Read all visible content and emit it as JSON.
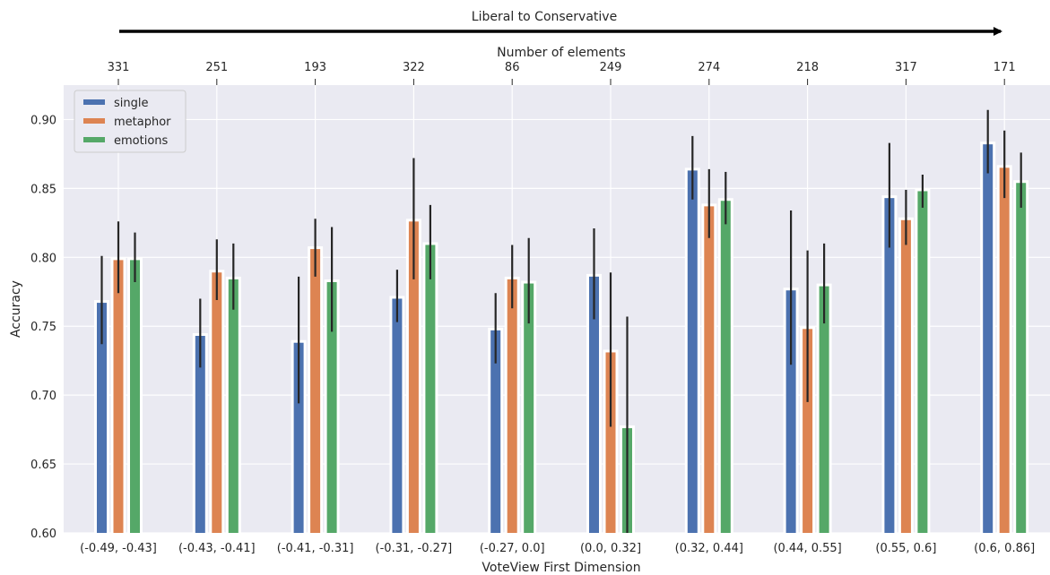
{
  "chart_data": {
    "type": "bar",
    "title": "Liberal to Conservative",
    "top_axis_label": "Number of elements",
    "top_tick_labels": [
      "331",
      "251",
      "193",
      "322",
      "86",
      "249",
      "274",
      "218",
      "317",
      "171"
    ],
    "xlabel": "VoteView First Dimension",
    "ylabel": "Accuracy",
    "categories": [
      "(-0.49, -0.43]",
      "(-0.43, -0.41]",
      "(-0.41, -0.31]",
      "(-0.31, -0.27]",
      "(-0.27, 0.0]",
      "(0.0, 0.32]",
      "(0.32, 0.44]",
      "(0.44, 0.55]",
      "(0.55, 0.6]",
      "(0.6, 0.86]"
    ],
    "ylim": [
      0.6,
      0.925
    ],
    "yticks": [
      "0.60",
      "0.65",
      "0.70",
      "0.75",
      "0.80",
      "0.85",
      "0.90"
    ],
    "grid": true,
    "legend_position": "top-left",
    "series": [
      {
        "name": "single",
        "color": "#4c72b0",
        "values": [
          0.767,
          0.743,
          0.738,
          0.77,
          0.747,
          0.786,
          0.863,
          0.776,
          0.843,
          0.882
        ],
        "err_low": [
          0.737,
          0.72,
          0.694,
          0.753,
          0.723,
          0.755,
          0.842,
          0.722,
          0.807,
          0.861
        ],
        "err_high": [
          0.801,
          0.77,
          0.786,
          0.791,
          0.774,
          0.821,
          0.888,
          0.834,
          0.883,
          0.907
        ]
      },
      {
        "name": "metaphor",
        "color": "#dd8452",
        "values": [
          0.798,
          0.789,
          0.806,
          0.826,
          0.784,
          0.731,
          0.837,
          0.748,
          0.827,
          0.865
        ],
        "err_low": [
          0.774,
          0.769,
          0.786,
          0.784,
          0.763,
          0.677,
          0.814,
          0.695,
          0.809,
          0.843
        ],
        "err_high": [
          0.826,
          0.813,
          0.828,
          0.872,
          0.809,
          0.789,
          0.864,
          0.805,
          0.849,
          0.892
        ]
      },
      {
        "name": "emotions",
        "color": "#55a868",
        "values": [
          0.798,
          0.784,
          0.782,
          0.809,
          0.781,
          0.676,
          0.841,
          0.779,
          0.848,
          0.854
        ],
        "err_low": [
          0.782,
          0.762,
          0.746,
          0.784,
          0.752,
          0.6,
          0.824,
          0.752,
          0.836,
          0.836
        ],
        "err_high": [
          0.818,
          0.81,
          0.822,
          0.838,
          0.814,
          0.757,
          0.862,
          0.81,
          0.86,
          0.876
        ]
      }
    ]
  }
}
